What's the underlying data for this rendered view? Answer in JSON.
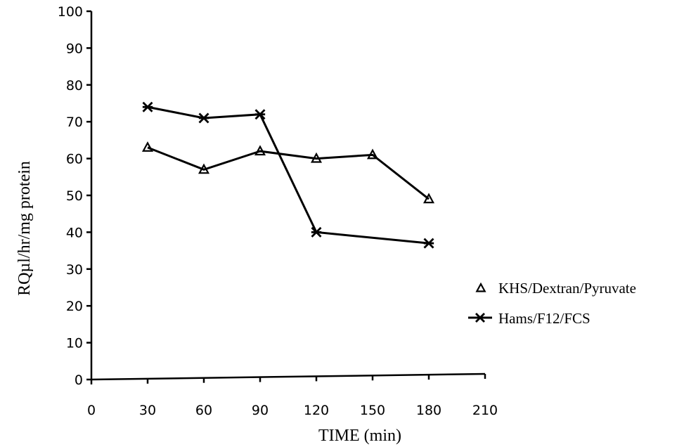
{
  "chart_data": {
    "type": "line",
    "xlabel": "TIME (min)",
    "ylabel": "RQµl/hr/mg protein",
    "xlim": [
      0,
      210
    ],
    "ylim": [
      0,
      100
    ],
    "x_ticks": [
      "0",
      "30",
      "60",
      "90",
      "120",
      "150",
      "180",
      "210"
    ],
    "y_ticks": [
      "0",
      "10",
      "20",
      "30",
      "40",
      "50",
      "60",
      "70",
      "80",
      "90",
      "100"
    ],
    "grid": false,
    "legend_position": "right",
    "series": [
      {
        "name": "KHS/Dextran/Pyruvate",
        "marker": "triangle",
        "x": [
          30,
          60,
          90,
          120,
          150,
          180
        ],
        "y": [
          63,
          57,
          62,
          60,
          61,
          49
        ]
      },
      {
        "name": "Hams/F12/FCS",
        "marker": "star-x",
        "x": [
          30,
          60,
          90,
          120,
          150,
          180
        ],
        "y": [
          74,
          71,
          72,
          40,
          null,
          37
        ]
      }
    ]
  }
}
